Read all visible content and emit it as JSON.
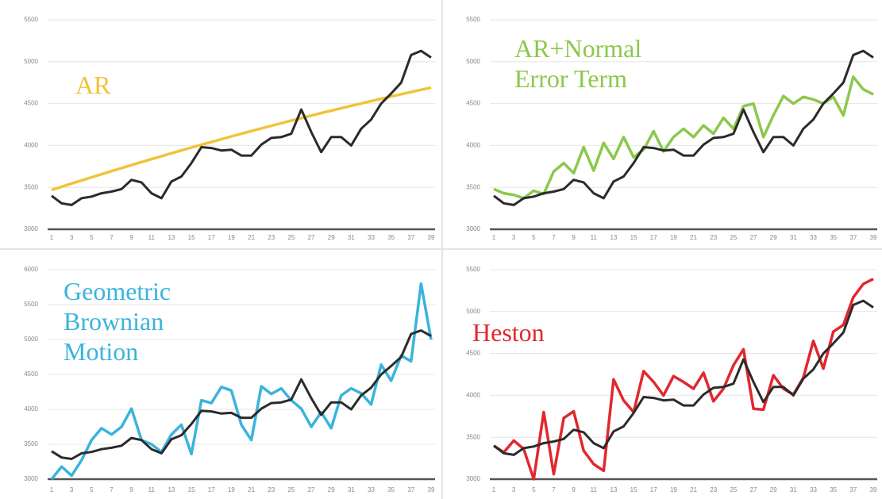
{
  "chart_data": [
    {
      "type": "line",
      "categories": [
        1,
        null,
        3,
        null,
        5,
        null,
        7,
        null,
        9,
        null,
        11,
        null,
        13,
        null,
        15,
        null,
        17,
        null,
        19,
        null,
        21,
        null,
        23,
        null,
        25,
        null,
        27,
        null,
        29,
        null,
        31,
        null,
        33,
        null,
        35,
        null,
        37,
        null,
        39
      ],
      "ylim": [
        3000,
        5500
      ],
      "yticks": [
        3000,
        3500,
        4000,
        4500,
        5000,
        5500
      ],
      "grid": true,
      "series": [
        {
          "color": "#2b2b2b",
          "values": [
            3400,
            3310,
            3290,
            3370,
            3390,
            3430,
            3450,
            3480,
            3590,
            3560,
            3430,
            3370,
            3570,
            3630,
            3790,
            3980,
            3970,
            3940,
            3950,
            3880,
            3880,
            4010,
            4090,
            4100,
            4140,
            4430,
            4160,
            3920,
            4100,
            4100,
            4000,
            4200,
            4310,
            4500,
            4620,
            4750,
            5080,
            5130,
            5050
          ]
        },
        {
          "name": "AR",
          "color": "#f0c43a",
          "values": [
            3470,
            3508,
            3546,
            3583,
            3620,
            3657,
            3694,
            3730,
            3766,
            3802,
            3837,
            3872,
            3907,
            3941,
            3975,
            4009,
            4042,
            4075,
            4108,
            4140,
            4172,
            4204,
            4235,
            4266,
            4297,
            4327,
            4357,
            4387,
            4416,
            4445,
            4474,
            4502,
            4530,
            4558,
            4585,
            4612,
            4639,
            4665,
            4691
          ]
        }
      ]
    },
    {
      "type": "line",
      "categories": [
        1,
        null,
        3,
        null,
        5,
        null,
        7,
        null,
        9,
        null,
        11,
        null,
        13,
        null,
        15,
        null,
        17,
        null,
        19,
        null,
        21,
        null,
        23,
        null,
        25,
        null,
        27,
        null,
        29,
        null,
        31,
        null,
        33,
        null,
        35,
        null,
        37,
        null,
        39
      ],
      "ylim": [
        3000,
        5500
      ],
      "yticks": [
        3000,
        3500,
        4000,
        4500,
        5000,
        5500
      ],
      "grid": true,
      "series": [
        {
          "color": "#2b2b2b",
          "values": [
            3400,
            3310,
            3290,
            3370,
            3390,
            3430,
            3450,
            3480,
            3590,
            3560,
            3430,
            3370,
            3570,
            3630,
            3790,
            3980,
            3970,
            3940,
            3950,
            3880,
            3880,
            4010,
            4090,
            4100,
            4140,
            4430,
            4160,
            3920,
            4100,
            4100,
            4000,
            4200,
            4310,
            4500,
            4620,
            4750,
            5080,
            5130,
            5050
          ]
        },
        {
          "name": "AR+Normal Error Term",
          "color": "#8cc84b",
          "values": [
            3480,
            3430,
            3410,
            3370,
            3460,
            3420,
            3690,
            3790,
            3670,
            3980,
            3700,
            4030,
            3840,
            4100,
            3860,
            3950,
            4170,
            3930,
            4100,
            4200,
            4100,
            4240,
            4140,
            4330,
            4200,
            4470,
            4500,
            4100,
            4360,
            4590,
            4500,
            4580,
            4550,
            4500,
            4580,
            4360,
            4820,
            4670,
            4610
          ]
        }
      ]
    },
    {
      "type": "line",
      "categories": [
        1,
        null,
        3,
        null,
        5,
        null,
        7,
        null,
        9,
        null,
        11,
        null,
        13,
        null,
        15,
        null,
        17,
        null,
        19,
        null,
        21,
        null,
        23,
        null,
        25,
        null,
        27,
        null,
        29,
        null,
        31,
        null,
        33,
        null,
        35,
        null,
        37,
        null,
        39
      ],
      "ylim": [
        3000,
        6000
      ],
      "yticks": [
        3000,
        3500,
        4000,
        4500,
        5000,
        5500,
        6000
      ],
      "grid": true,
      "series": [
        {
          "color": "#2b2b2b",
          "values": [
            3400,
            3310,
            3290,
            3370,
            3390,
            3430,
            3450,
            3480,
            3590,
            3560,
            3430,
            3370,
            3570,
            3630,
            3790,
            3980,
            3970,
            3940,
            3950,
            3880,
            3880,
            4010,
            4090,
            4100,
            4140,
            4430,
            4160,
            3920,
            4100,
            4100,
            4000,
            4200,
            4310,
            4500,
            4620,
            4750,
            5080,
            5130,
            5050
          ]
        },
        {
          "name": "Geometric Brownian Motion",
          "color": "#3ab4dc",
          "values": [
            3000,
            3180,
            3050,
            3270,
            3560,
            3730,
            3640,
            3750,
            4010,
            3560,
            3500,
            3390,
            3640,
            3780,
            3360,
            4130,
            4090,
            4320,
            4270,
            3780,
            3560,
            4330,
            4220,
            4300,
            4130,
            4010,
            3750,
            3960,
            3730,
            4200,
            4300,
            4230,
            4070,
            4640,
            4410,
            4770,
            4690,
            5800,
            5000
          ]
        }
      ]
    },
    {
      "type": "line",
      "categories": [
        1,
        null,
        3,
        null,
        5,
        null,
        7,
        null,
        9,
        null,
        11,
        null,
        13,
        null,
        15,
        null,
        17,
        null,
        19,
        null,
        21,
        null,
        23,
        null,
        25,
        null,
        27,
        null,
        29,
        null,
        31,
        null,
        33,
        null,
        35,
        null,
        37,
        null,
        39
      ],
      "ylim": [
        3000,
        5500
      ],
      "yticks": [
        3000,
        3500,
        4000,
        4500,
        5000,
        5500
      ],
      "grid": true,
      "series": [
        {
          "color": "#2b2b2b",
          "values": [
            3400,
            3310,
            3290,
            3370,
            3390,
            3430,
            3450,
            3480,
            3590,
            3560,
            3430,
            3370,
            3570,
            3630,
            3790,
            3980,
            3970,
            3940,
            3950,
            3880,
            3880,
            4010,
            4090,
            4100,
            4140,
            4430,
            4160,
            3920,
            4100,
            4100,
            4000,
            4200,
            4310,
            4500,
            4620,
            4750,
            5080,
            5130,
            5050
          ]
        },
        {
          "name": "Heston",
          "color": "#e0282e",
          "values": [
            3400,
            3320,
            3460,
            3360,
            3000,
            3800,
            3060,
            3730,
            3810,
            3340,
            3180,
            3100,
            4190,
            3940,
            3800,
            4290,
            4160,
            4000,
            4230,
            4160,
            4080,
            4270,
            3930,
            4080,
            4360,
            4550,
            3840,
            3830,
            4240,
            4080,
            4010,
            4210,
            4650,
            4320,
            4760,
            4840,
            5170,
            5330,
            5390
          ]
        }
      ]
    }
  ]
}
